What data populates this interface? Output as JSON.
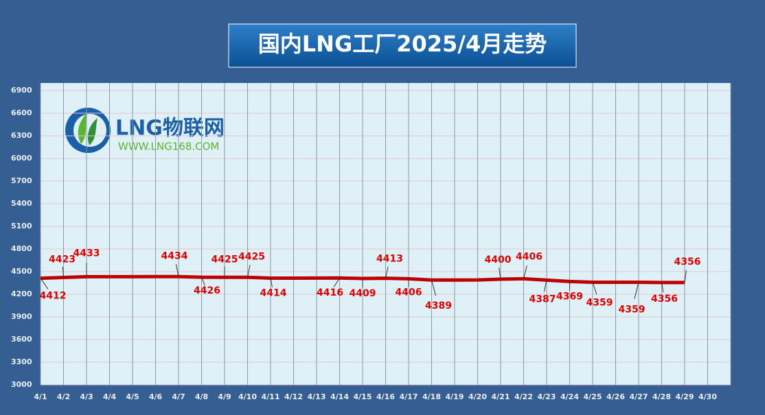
{
  "chart_data": {
    "type": "line",
    "title": "国内LNG工厂2025/4月走势",
    "logo": {
      "name": "LNG物联网",
      "url": "WWW.LNG168.COM"
    },
    "categories": [
      "4/1",
      "4/2",
      "4/3",
      "4/4",
      "4/5",
      "4/6",
      "4/7",
      "4/8",
      "4/9",
      "4/10",
      "4/11",
      "4/12",
      "4/13",
      "4/14",
      "4/15",
      "4/16",
      "4/17",
      "4/18",
      "4/19",
      "4/20",
      "4/21",
      "4/22",
      "4/23",
      "4/24",
      "4/25",
      "4/26",
      "4/27",
      "4/28",
      "4/29",
      "4/30"
    ],
    "series": [
      {
        "name": "国内LNG工厂",
        "color": "#c00000",
        "values": [
          4412,
          4423,
          4433,
          4433,
          4433,
          4434,
          4434,
          4426,
          4425,
          4425,
          4414,
          4414,
          4415,
          4416,
          4409,
          4413,
          4406,
          4389,
          4389,
          4390,
          4400,
          4406,
          4387,
          4369,
          4359,
          4359,
          4359,
          4356,
          4356,
          null
        ],
        "value_labels": [
          "4412",
          "4423",
          "4433",
          null,
          null,
          null,
          "4434",
          "4426",
          "4425",
          "4425",
          "4414",
          null,
          null,
          "4416",
          "4409",
          "4413",
          "4406",
          "4389",
          null,
          null,
          "4400",
          "4406",
          "4387",
          "4369",
          "4359",
          null,
          "4359",
          "4356",
          "4356",
          null
        ]
      }
    ],
    "ylim": [
      3000,
      7000
    ],
    "yticks": [
      3000,
      3300,
      3600,
      3900,
      4200,
      4500,
      4800,
      5100,
      5400,
      5700,
      6000,
      6300,
      6600,
      6900
    ],
    "grid": true
  }
}
